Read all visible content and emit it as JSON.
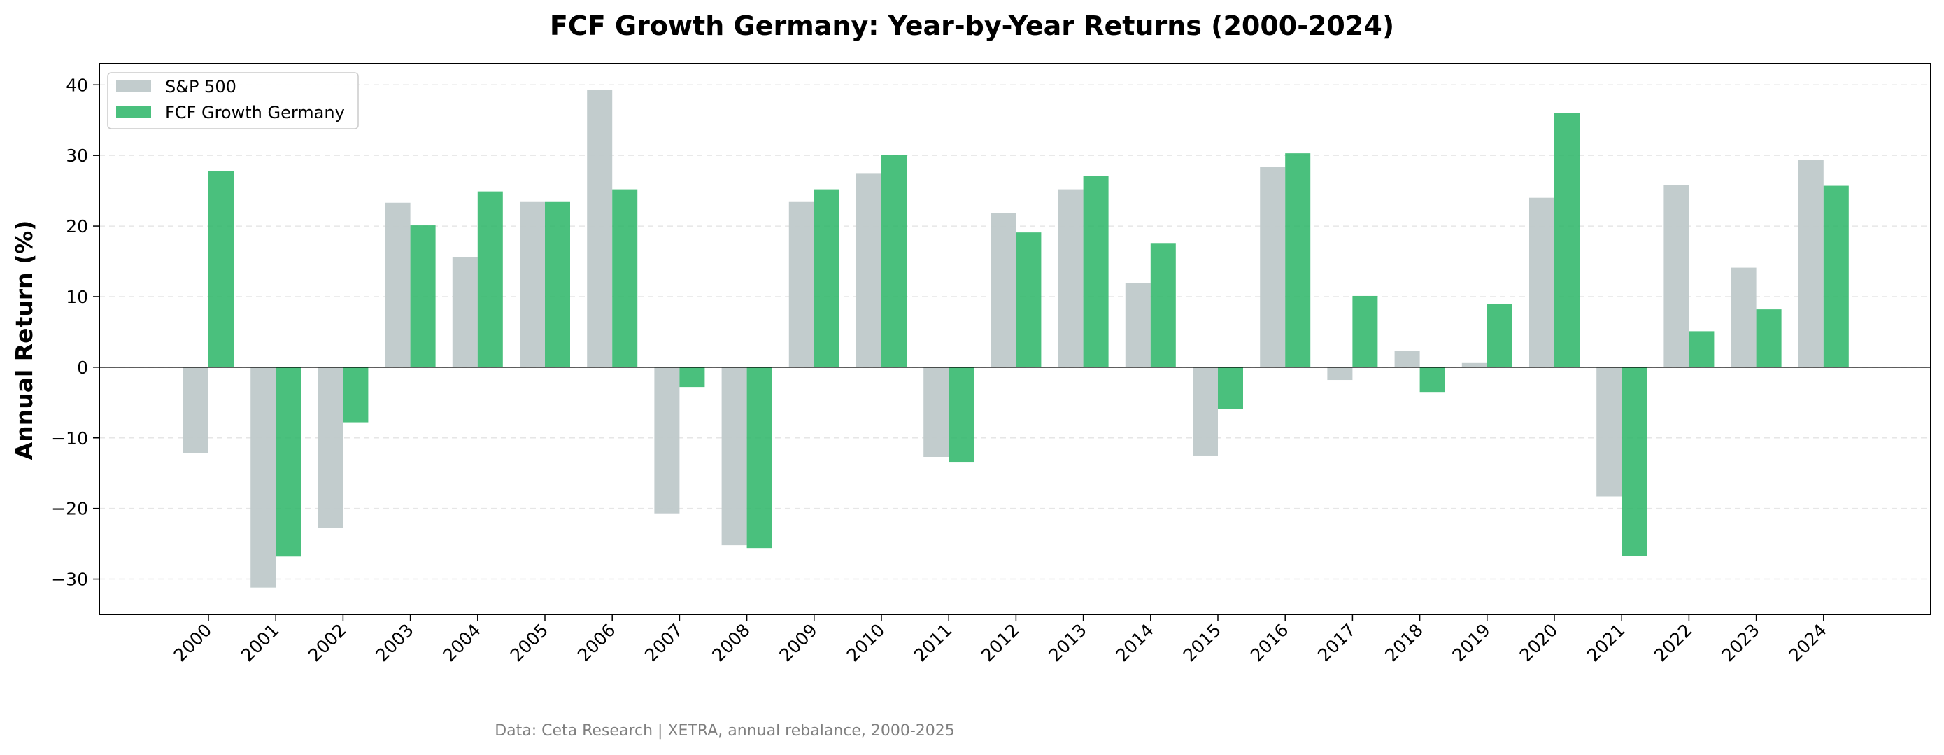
{
  "chart_data": {
    "type": "bar",
    "title": "FCF Growth Germany: Year-by-Year Returns (2000-2024)",
    "xlabel": "",
    "ylabel": "Annual Return (%)",
    "ylim": [
      -35,
      43
    ],
    "yticks": [
      -30,
      -20,
      -10,
      0,
      10,
      20,
      30,
      40
    ],
    "grid": "horizontal dashed",
    "legend_position": "top-left",
    "categories": [
      "2000",
      "2001",
      "2002",
      "2003",
      "2004",
      "2005",
      "2006",
      "2007",
      "2008",
      "2009",
      "2010",
      "2011",
      "2012",
      "2013",
      "2014",
      "2015",
      "2016",
      "2017",
      "2018",
      "2019",
      "2020",
      "2021",
      "2022",
      "2023",
      "2024"
    ],
    "series": [
      {
        "name": "S&P 500",
        "color": "#bfc9ca",
        "values": [
          -12.2,
          -31.2,
          -22.8,
          23.3,
          15.6,
          23.5,
          39.3,
          -20.7,
          -25.2,
          23.5,
          27.5,
          -12.7,
          21.8,
          25.2,
          11.9,
          -12.5,
          28.4,
          -1.8,
          2.3,
          0.6,
          24.0,
          -18.3,
          25.8,
          14.1,
          29.4
        ]
      },
      {
        "name": "FCF Growth Germany",
        "color": "#2ab566",
        "values": [
          27.8,
          -26.8,
          -7.8,
          20.1,
          24.9,
          23.5,
          25.2,
          -2.8,
          -25.6,
          25.2,
          30.1,
          -13.4,
          19.1,
          27.1,
          17.6,
          -5.9,
          30.3,
          10.1,
          -3.5,
          9.0,
          36.0,
          -26.7,
          5.1,
          8.2,
          25.7
        ]
      }
    ]
  },
  "footer": {
    "source": "Data: Ceta Research | XETRA, annual rebalance, 2000-2025"
  }
}
